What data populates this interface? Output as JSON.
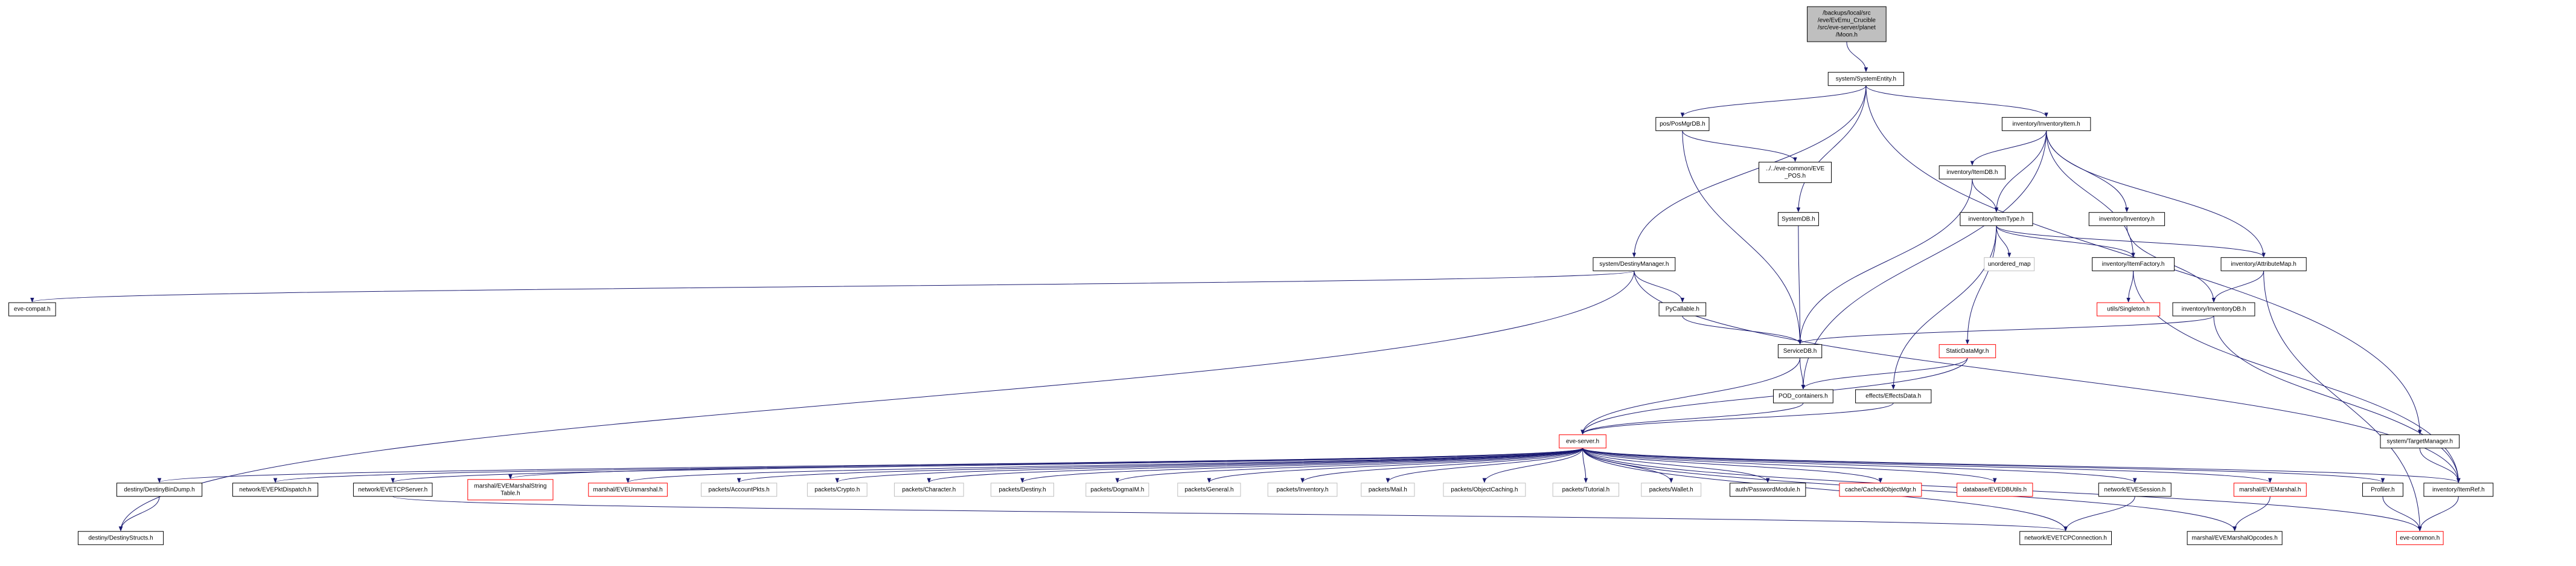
{
  "nodes": [
    {
      "lines": [
        "/backups/local/src",
        "/eve/EvEmu_Crucible",
        "/src/eve-server/planet",
        "/Moon.h"
      ]
    },
    {
      "lines": [
        "system/SystemEntity.h"
      ]
    },
    {
      "lines": [
        "pos/PosMgrDB.h"
      ]
    },
    {
      "lines": [
        "../../eve-common/EVE",
        "_POS.h"
      ]
    },
    {
      "lines": [
        "inventory/InventoryItem.h"
      ]
    },
    {
      "lines": [
        "inventory/ItemDB.h"
      ]
    },
    {
      "lines": [
        "inventory/ItemType.h"
      ]
    },
    {
      "lines": [
        "inventory/Inventory.h"
      ]
    },
    {
      "lines": [
        "SystemDB.h"
      ]
    },
    {
      "lines": [
        "system/DestinyManager.h"
      ]
    },
    {
      "lines": [
        "unordered_map"
      ]
    },
    {
      "lines": [
        "inventory/ItemFactory.h"
      ]
    },
    {
      "lines": [
        "inventory/AttributeMap.h"
      ]
    },
    {
      "lines": [
        "eve-compat.h"
      ]
    },
    {
      "lines": [
        "PyCallable.h"
      ]
    },
    {
      "lines": [
        "utils/Singleton.h"
      ]
    },
    {
      "lines": [
        "inventory/InventoryDB.h"
      ]
    },
    {
      "lines": [
        "ServiceDB.h"
      ]
    },
    {
      "lines": [
        "StaticDataMgr.h"
      ]
    },
    {
      "lines": [
        "effects/EffectsData.h"
      ]
    },
    {
      "lines": [
        "POD_containers.h"
      ]
    },
    {
      "lines": [
        "system/TargetManager.h"
      ]
    },
    {
      "lines": [
        "eve-server.h"
      ]
    },
    {
      "lines": [
        "destiny/DestinyBinDump.h"
      ]
    },
    {
      "lines": [
        "network/EVEPktDispatch.h"
      ]
    },
    {
      "lines": [
        "network/EVETCPServer.h"
      ]
    },
    {
      "lines": [
        "marshal/EVEMarshalString",
        "Table.h"
      ]
    },
    {
      "lines": [
        "marshal/EVEUnmarshal.h"
      ]
    },
    {
      "lines": [
        "packets/AccountPkts.h"
      ]
    },
    {
      "lines": [
        "packets/Crypto.h"
      ]
    },
    {
      "lines": [
        "packets/Character.h"
      ]
    },
    {
      "lines": [
        "packets/Destiny.h"
      ]
    },
    {
      "lines": [
        "packets/DogmaIM.h"
      ]
    },
    {
      "lines": [
        "packets/General.h"
      ]
    },
    {
      "lines": [
        "packets/Inventory.h"
      ]
    },
    {
      "lines": [
        "packets/Mail.h"
      ]
    },
    {
      "lines": [
        "packets/ObjectCaching.h"
      ]
    },
    {
      "lines": [
        "packets/Tutorial.h"
      ]
    },
    {
      "lines": [
        "packets/Wallet.h"
      ]
    },
    {
      "lines": [
        "auth/PasswordModule.h"
      ]
    },
    {
      "lines": [
        "cache/CachedObjectMgr.h"
      ]
    },
    {
      "lines": [
        "database/EVEDBUtils.h"
      ]
    },
    {
      "lines": [
        "network/EVESession.h"
      ]
    },
    {
      "lines": [
        "marshal/EVEMarshal.h"
      ]
    },
    {
      "lines": [
        "Profiler.h"
      ]
    },
    {
      "lines": [
        "inventory/ItemRef.h"
      ]
    },
    {
      "lines": [
        "destiny/DestinyStructs.h"
      ]
    },
    {
      "lines": [
        "network/EVETCPConnection.h"
      ]
    },
    {
      "lines": [
        "marshal/EVEMarshalOpcodes.h"
      ]
    },
    {
      "lines": [
        "eve-common.h"
      ]
    }
  ]
}
